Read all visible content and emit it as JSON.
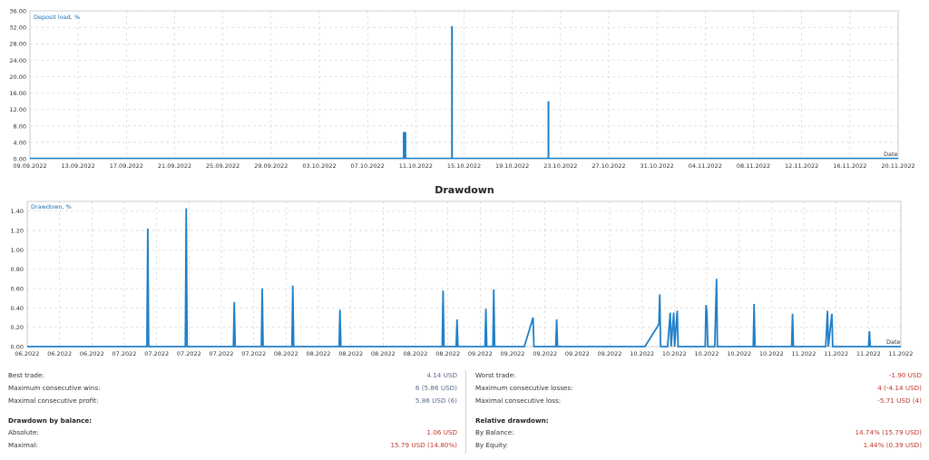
{
  "colors": {
    "series": "#1f7fc8",
    "grid": "#d6d6d6",
    "frame": "#c8c8c8",
    "positive": "#5b6b8c",
    "negative": "#c0392b"
  },
  "chart_data": [
    {
      "type": "line",
      "title": "",
      "ylabel": "Deposit load, %",
      "xlabel": "Date",
      "ylim": [
        0,
        36
      ],
      "y_ticks": [
        "0.00",
        "4.00",
        "8.00",
        "12.00",
        "16.00",
        "20.00",
        "24.00",
        "28.00",
        "32.00",
        "36.00"
      ],
      "x_ticks": [
        "09.09.2022",
        "13.09.2022",
        "17.09.2022",
        "21.09.2022",
        "25.09.2022",
        "29.09.2022",
        "03.10.2022",
        "07.10.2022",
        "11.10.2022",
        "15.10.2022",
        "19.10.2022",
        "23.10.2022",
        "27.10.2022",
        "31.10.2022",
        "04.11.2022",
        "08.11.2022",
        "12.11.2022",
        "16.11.2022",
        "20.11.2022"
      ],
      "grid": true,
      "series": [
        {
          "spikes": [
            {
              "x": "10.10.2022",
              "y": 6.5
            },
            {
              "x": "10.10.2022",
              "y": 6.5
            },
            {
              "x": "14.10.2022",
              "y": 32.3
            },
            {
              "x": "22.10.2022",
              "y": 14.0
            }
          ]
        }
      ]
    },
    {
      "type": "line",
      "title": "Drawdown",
      "ylabel": "Drawdown, %",
      "xlabel": "Date",
      "ylim": [
        0,
        1.5
      ],
      "y_ticks": [
        "0.00",
        "0.20",
        "0.40",
        "0.60",
        "0.80",
        "1.00",
        "1.20",
        "1.40"
      ],
      "x_ticks": [
        "06.2022",
        "06.2022",
        "06.2022",
        "07.2022",
        "07.2022",
        "07.2022",
        "07.2022",
        "07.2022",
        "08.2022",
        "08.2022",
        "08.2022",
        "08.2022",
        "08.2022",
        "08.2022",
        "09.2022",
        "09.2022",
        "09.2022",
        "09.2022",
        "09.2022",
        "10.2022",
        "10.2022",
        "10.2022",
        "10.2022",
        "10.2022",
        "11.2022",
        "11.2022",
        "11.2022",
        "11.2022"
      ],
      "grid": true,
      "series": [
        {
          "points": [
            [
              0.0,
              0
            ],
            [
              0.137,
              0
            ],
            [
              0.138,
              1.22
            ],
            [
              0.139,
              0
            ],
            [
              0.181,
              0
            ],
            [
              0.182,
              1.43
            ],
            [
              0.183,
              0
            ],
            [
              0.236,
              0
            ],
            [
              0.237,
              0.46
            ],
            [
              0.238,
              0
            ],
            [
              0.268,
              0
            ],
            [
              0.269,
              0.6
            ],
            [
              0.27,
              0
            ],
            [
              0.303,
              0
            ],
            [
              0.304,
              0.63
            ],
            [
              0.305,
              0
            ],
            [
              0.357,
              0
            ],
            [
              0.358,
              0.38
            ],
            [
              0.359,
              0
            ],
            [
              0.475,
              0
            ],
            [
              0.476,
              0.58
            ],
            [
              0.477,
              0
            ],
            [
              0.491,
              0
            ],
            [
              0.492,
              0.28
            ],
            [
              0.493,
              0
            ],
            [
              0.524,
              0
            ],
            [
              0.525,
              0.39
            ],
            [
              0.526,
              0
            ],
            [
              0.533,
              0
            ],
            [
              0.534,
              0.59
            ],
            [
              0.535,
              0
            ],
            [
              0.569,
              0
            ],
            [
              0.579,
              0.3
            ],
            [
              0.58,
              0
            ],
            [
              0.605,
              0
            ],
            [
              0.606,
              0.28
            ],
            [
              0.607,
              0
            ],
            [
              0.707,
              0
            ],
            [
              0.723,
              0.23
            ],
            [
              0.724,
              0.54
            ],
            [
              0.725,
              0
            ],
            [
              0.733,
              0
            ],
            [
              0.736,
              0.35
            ],
            [
              0.737,
              0
            ],
            [
              0.74,
              0.35
            ],
            [
              0.741,
              0
            ],
            [
              0.744,
              0.37
            ],
            [
              0.745,
              0
            ],
            [
              0.776,
              0
            ],
            [
              0.777,
              0.43
            ],
            [
              0.778,
              0.35
            ],
            [
              0.779,
              0
            ],
            [
              0.787,
              0
            ],
            [
              0.788,
              0.36
            ],
            [
              0.789,
              0.7
            ],
            [
              0.79,
              0
            ],
            [
              0.831,
              0
            ],
            [
              0.832,
              0.44
            ],
            [
              0.833,
              0
            ],
            [
              0.875,
              0
            ],
            [
              0.876,
              0.34
            ],
            [
              0.877,
              0
            ],
            [
              0.914,
              0
            ],
            [
              0.916,
              0.37
            ],
            [
              0.917,
              0
            ],
            [
              0.921,
              0.34
            ],
            [
              0.922,
              0
            ],
            [
              0.963,
              0
            ],
            [
              0.964,
              0.16
            ],
            [
              0.965,
              0
            ],
            [
              1.0,
              0
            ]
          ]
        }
      ]
    }
  ],
  "stats": {
    "left": {
      "rows": [
        {
          "label": "Best trade:",
          "value": "4.14 USD",
          "tone": "pos"
        },
        {
          "label": "Maximum consecutive wins:",
          "value": "6 (5.86 USD)",
          "tone": "pos"
        },
        {
          "label": "Maximal consecutive profit:",
          "value": "5.86 USD (6)",
          "tone": "pos"
        }
      ],
      "section_title": "Drawdown by balance:",
      "section_rows": [
        {
          "label": "Absolute:",
          "value": "1.06 USD",
          "tone": "neg"
        },
        {
          "label": "Maximal:",
          "value": "15.79 USD (14.80%)",
          "tone": "neg"
        }
      ]
    },
    "right": {
      "rows": [
        {
          "label": "Worst trade:",
          "value": "-1.90 USD",
          "tone": "neg"
        },
        {
          "label": "Maximum consecutive losses:",
          "value": "4 (-4.14 USD)",
          "tone": "neg"
        },
        {
          "label": "Maximal consecutive loss:",
          "value": "-5.71 USD (4)",
          "tone": "neg"
        }
      ],
      "section_title": "Relative drawdown:",
      "section_rows": [
        {
          "label": "By Balance:",
          "value": "14.74% (15.79 USD)",
          "tone": "neg"
        },
        {
          "label": "By Equity:",
          "value": "1.44% (0.39 USD)",
          "tone": "neg"
        }
      ]
    }
  }
}
